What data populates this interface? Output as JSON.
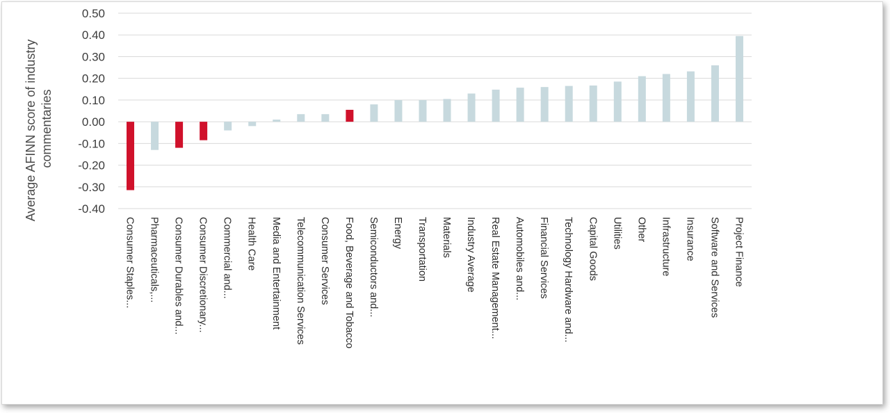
{
  "chart_data": {
    "type": "bar",
    "ylabel": "Average AFINN score of industry commentaries",
    "ylabel_lines": [
      "Average AFINN score of industry",
      "commentaries"
    ],
    "ylim": [
      -0.4,
      0.5
    ],
    "yticks": [
      "0.50",
      "0.40",
      "0.30",
      "0.20",
      "0.10",
      "0.00",
      "-0.10",
      "-0.20",
      "-0.30",
      "-0.40"
    ],
    "grid": true,
    "categories": [
      "Consumer Staples...",
      "Pharmaceuticals,...",
      "Consumer Durables and...",
      "Consumer Discretionary...",
      "Commercial and...",
      "Health Care",
      "Media and Entertainment",
      "Telecommunication Services",
      "Consumer Services",
      "Food, Beverage and Tobacco",
      "Semiconductors and...",
      "Energy",
      "Transportation",
      "Materials",
      "Industry Average",
      "Real Estate Management...",
      "Automobiles and...",
      "Financial Services",
      "Technology Hardware and...",
      "Capital Goods",
      "Utilities",
      "Other",
      "Infrastructure",
      "Insurance",
      "Software and Services",
      "Project Finance"
    ],
    "values": [
      -0.315,
      -0.13,
      -0.12,
      -0.085,
      -0.04,
      -0.02,
      0.01,
      0.035,
      0.035,
      0.055,
      0.08,
      0.1,
      0.1,
      0.105,
      0.13,
      0.148,
      0.157,
      0.16,
      0.165,
      0.167,
      0.185,
      0.21,
      0.22,
      0.232,
      0.26,
      0.395
    ],
    "highlighted": [
      true,
      false,
      true,
      true,
      false,
      false,
      false,
      false,
      false,
      true,
      false,
      false,
      false,
      false,
      false,
      false,
      false,
      false,
      false,
      false,
      false,
      false,
      false,
      false,
      false,
      false
    ],
    "colors": {
      "highlight": "#d0112b",
      "default": "#c7d9de",
      "grid": "#d9d9d9"
    }
  }
}
